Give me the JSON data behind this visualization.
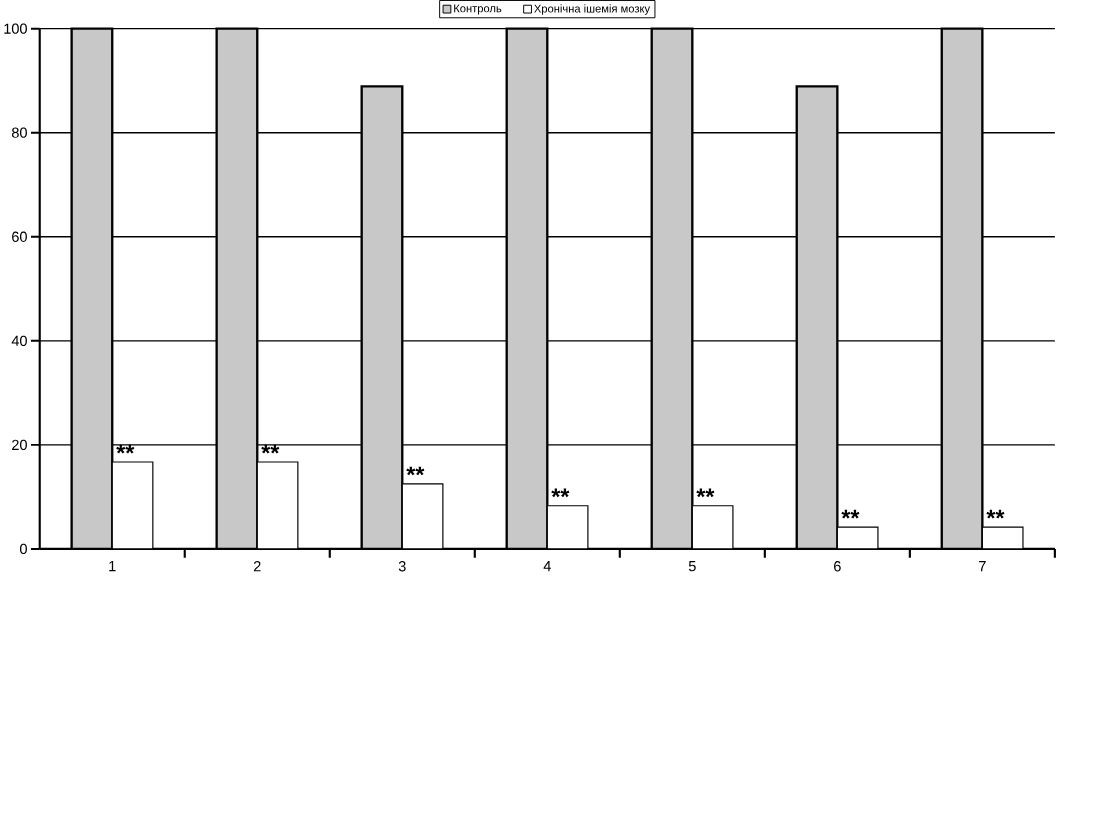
{
  "chart_data": {
    "type": "bar",
    "categories": [
      "1",
      "2",
      "3",
      "4",
      "5",
      "6",
      "7"
    ],
    "series": [
      {
        "name": "Контроль",
        "color": "#c8c8c8",
        "values": [
          100,
          100,
          88.9,
          100,
          100,
          88.9,
          100
        ]
      },
      {
        "name": "Хронічна ішемія мозку",
        "color": "#ffffff",
        "values": [
          16.7,
          16.7,
          12.5,
          8.3,
          8.3,
          4.2,
          4.2
        ]
      }
    ],
    "ylim": [
      0,
      100
    ],
    "yticks": [
      0,
      20,
      40,
      60,
      80,
      100
    ],
    "grid": "y",
    "legend": "top",
    "annotations": [
      {
        "text": "**",
        "x": "1",
        "y": 16.7
      },
      {
        "text": "**",
        "x": "2",
        "y": 16.7
      },
      {
        "text": "**",
        "x": "3",
        "y": 12.5
      },
      {
        "text": "**",
        "x": "4",
        "y": 8.3
      },
      {
        "text": "**",
        "x": "5",
        "y": 8.3
      },
      {
        "text": "**",
        "x": "6",
        "y": 4.2
      },
      {
        "text": "**",
        "x": "7",
        "y": 4.2
      }
    ]
  }
}
